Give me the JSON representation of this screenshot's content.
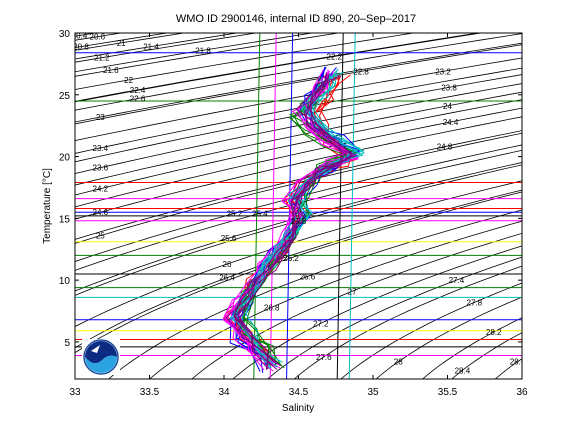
{
  "chart_data": {
    "type": "line",
    "title": "WMO ID 2900146, internal ID 890, 20–Sep–2017",
    "xlabel": "Salinity",
    "ylabel": "Temperature [°C]",
    "xlim": [
      33,
      36
    ],
    "ylim": [
      2,
      30
    ],
    "xticks": [
      "33",
      "33.5",
      "34",
      "34.5",
      "35",
      "35.5",
      "36"
    ],
    "yticks": [
      "5",
      "10",
      "15",
      "20",
      "25",
      "30"
    ],
    "grid": false,
    "logo": "noaa-logo",
    "density_isolines": [
      {
        "label": "20.4",
        "s": 33.03,
        "t": 29.8
      },
      {
        "label": "20.6",
        "s": 33.15,
        "t": 29.7
      },
      {
        "label": "20.8",
        "s": 33.04,
        "t": 28.9
      },
      {
        "label": "21",
        "s": 33.31,
        "t": 29.2
      },
      {
        "label": "21.2",
        "s": 33.18,
        "t": 28.0
      },
      {
        "label": "21.4",
        "s": 33.51,
        "t": 28.9
      },
      {
        "label": "21.6",
        "s": 33.24,
        "t": 27.0
      },
      {
        "label": "21.8",
        "s": 33.86,
        "t": 28.6
      },
      {
        "label": "22",
        "s": 33.36,
        "t": 26.2
      },
      {
        "label": "22.2",
        "s": 34.74,
        "t": 28.1
      },
      {
        "label": "22.4",
        "s": 33.42,
        "t": 25.4
      },
      {
        "label": "22.6",
        "s": 33.42,
        "t": 24.7
      },
      {
        "label": "22.8",
        "s": 34.92,
        "t": 26.9
      },
      {
        "label": "23",
        "s": 33.17,
        "t": 23.2
      },
      {
        "label": "23.2",
        "s": 35.47,
        "t": 26.9
      },
      {
        "label": "23.4",
        "s": 33.17,
        "t": 20.7
      },
      {
        "label": "23.6",
        "s": 33.17,
        "t": 19.1
      },
      {
        "label": "23.8",
        "s": 35.51,
        "t": 25.6
      },
      {
        "label": "24",
        "s": 35.5,
        "t": 24.1
      },
      {
        "label": "24.2",
        "s": 33.17,
        "t": 17.4
      },
      {
        "label": "24.4",
        "s": 35.52,
        "t": 22.8
      },
      {
        "label": "24.6",
        "s": 33.17,
        "t": 15.5
      },
      {
        "label": "24.8",
        "s": 35.48,
        "t": 20.8
      },
      {
        "label": "25",
        "s": 33.17,
        "t": 13.6
      },
      {
        "label": "25.2",
        "s": 34.07,
        "t": 15.4
      },
      {
        "label": "25.4",
        "s": 34.24,
        "t": 15.4
      },
      {
        "label": "25.6",
        "s": 34.03,
        "t": 13.4
      },
      {
        "label": "25.8",
        "s": 34.5,
        "t": 14.8
      },
      {
        "label": "26",
        "s": 34.02,
        "t": 11.3
      },
      {
        "label": "26.2",
        "s": 34.45,
        "t": 11.8
      },
      {
        "label": "26.4",
        "s": 34.02,
        "t": 10.2
      },
      {
        "label": "26.6",
        "s": 34.56,
        "t": 10.3
      },
      {
        "label": "26.8",
        "s": 34.32,
        "t": 7.8
      },
      {
        "label": "27",
        "s": 34.86,
        "t": 9.1
      },
      {
        "label": "27.2",
        "s": 34.65,
        "t": 6.5
      },
      {
        "label": "27.4",
        "s": 35.56,
        "t": 10.0
      },
      {
        "label": "27.6",
        "s": 34.67,
        "t": 3.8
      },
      {
        "label": "27.8",
        "s": 35.68,
        "t": 8.2
      },
      {
        "label": "28",
        "s": 35.17,
        "t": 3.4
      },
      {
        "label": "28.2",
        "s": 35.81,
        "t": 5.8
      },
      {
        "label": "28.4",
        "s": 35.6,
        "t": 2.7
      },
      {
        "label": "28.6",
        "s": 35.97,
        "t": 3.4
      }
    ],
    "series": [
      {
        "color": "#ff0000",
        "s": [
          34.33,
          34.25,
          34.15,
          34.06,
          34.12,
          34.2,
          34.3,
          34.37,
          34.45,
          34.5,
          34.46,
          34.55,
          34.65,
          34.78,
          34.86,
          34.72,
          34.66,
          34.6,
          34.68,
          34.74,
          34.8
        ],
        "t": [
          3.0,
          4.2,
          5.5,
          7.0,
          8.5,
          9.8,
          11.0,
          12.2,
          13.6,
          15.0,
          16.5,
          17.8,
          18.8,
          19.4,
          20.0,
          21.2,
          22.3,
          23.5,
          24.6,
          25.8,
          26.5
        ]
      },
      {
        "color": "#0000ff",
        "s": [
          34.3,
          34.2,
          34.1,
          34.08,
          34.15,
          34.22,
          34.28,
          34.36,
          34.44,
          34.52,
          34.5,
          34.6,
          34.7,
          34.82,
          34.9,
          34.75,
          34.62,
          34.55,
          34.6,
          34.66,
          34.7
        ],
        "t": [
          2.8,
          4.0,
          5.2,
          6.8,
          8.2,
          9.6,
          11.0,
          12.4,
          13.8,
          15.2,
          16.6,
          18.0,
          19.0,
          19.8,
          20.3,
          21.5,
          22.6,
          23.8,
          24.8,
          25.6,
          27.0
        ]
      },
      {
        "color": "#008000",
        "s": [
          34.35,
          34.28,
          34.18,
          34.1,
          34.16,
          34.24,
          34.32,
          34.4,
          34.47,
          34.55,
          34.52,
          34.58,
          34.67,
          34.76,
          34.84,
          34.7,
          34.58,
          34.5,
          34.56,
          34.62,
          34.68
        ],
        "t": [
          3.2,
          4.5,
          5.8,
          7.2,
          8.8,
          10.0,
          11.4,
          12.8,
          14.0,
          15.4,
          16.8,
          18.2,
          19.2,
          19.6,
          20.2,
          21.0,
          22.0,
          23.2,
          24.2,
          25.2,
          26.2
        ]
      },
      {
        "color": "#ff00ff",
        "s": [
          34.32,
          34.22,
          34.12,
          34.05,
          34.1,
          34.18,
          34.27,
          34.35,
          34.42,
          34.48,
          34.44,
          34.52,
          34.62,
          34.74,
          34.84,
          34.7,
          34.6,
          34.52,
          34.58,
          34.64,
          34.7
        ],
        "t": [
          2.9,
          4.1,
          5.4,
          6.9,
          8.4,
          9.7,
          11.2,
          12.5,
          13.7,
          15.1,
          16.4,
          17.7,
          18.9,
          19.5,
          20.1,
          21.3,
          22.4,
          23.6,
          24.6,
          25.4,
          26.8
        ]
      },
      {
        "color": "#00bfbf",
        "s": [
          34.36,
          34.27,
          34.17,
          34.09,
          34.14,
          34.23,
          34.31,
          34.39,
          34.46,
          34.53,
          34.49,
          34.57,
          34.68,
          34.8,
          34.88,
          34.74,
          34.64,
          34.57,
          34.64,
          34.7,
          34.76
        ],
        "t": [
          3.1,
          4.3,
          5.6,
          7.1,
          8.6,
          9.9,
          11.3,
          12.6,
          13.9,
          15.3,
          16.7,
          18.0,
          19.1,
          19.7,
          20.4,
          21.6,
          22.7,
          23.9,
          25.0,
          25.9,
          26.9
        ]
      },
      {
        "color": "#800080",
        "s": [
          34.34,
          34.24,
          34.14,
          34.07,
          34.13,
          34.21,
          34.29,
          34.38,
          34.45,
          34.51,
          34.47,
          34.56,
          34.66,
          34.77,
          34.85,
          34.71,
          34.61,
          34.54,
          34.61,
          34.67,
          34.73
        ],
        "t": [
          3.0,
          4.3,
          5.6,
          7.0,
          8.5,
          9.8,
          11.1,
          12.3,
          13.6,
          15.0,
          16.4,
          17.8,
          18.9,
          19.5,
          20.2,
          21.4,
          22.5,
          23.7,
          24.7,
          25.7,
          26.6
        ]
      }
    ],
    "horizontal_profiles": [
      {
        "color": "#000000",
        "t": 15.2
      },
      {
        "color": "#0000ff",
        "t": 15.5
      },
      {
        "color": "#ff0000",
        "t": 15.8
      },
      {
        "color": "#ff00ff",
        "t": 14.8
      },
      {
        "color": "#008000",
        "t": 12.0
      },
      {
        "color": "#000000",
        "t": 10.5
      },
      {
        "color": "#ffff00",
        "t": 13.1
      },
      {
        "color": "#ff00ff",
        "t": 16.6
      },
      {
        "color": "#008000",
        "t": 24.5
      },
      {
        "color": "#0000ff",
        "t": 6.8
      },
      {
        "color": "#ff0000",
        "t": 5.2
      },
      {
        "color": "#000000",
        "t": 4.6
      },
      {
        "color": "#00bfbf",
        "t": 8.6
      },
      {
        "color": "#ffff00",
        "t": 5.9
      },
      {
        "color": "#ff00ff",
        "t": 3.9
      },
      {
        "color": "#008000",
        "t": 9.4
      },
      {
        "color": "#ff0000",
        "t": 17.9
      },
      {
        "color": "#0000ff",
        "t": 28.4
      }
    ],
    "vertical_profiles": [
      {
        "color": "#00bfbf",
        "s": 34.84
      },
      {
        "color": "#008000",
        "s": 34.2
      },
      {
        "color": "#0000ff",
        "s": 34.42
      },
      {
        "color": "#ff00ff",
        "s": 34.31
      },
      {
        "color": "#000000",
        "s": 34.76
      }
    ]
  }
}
